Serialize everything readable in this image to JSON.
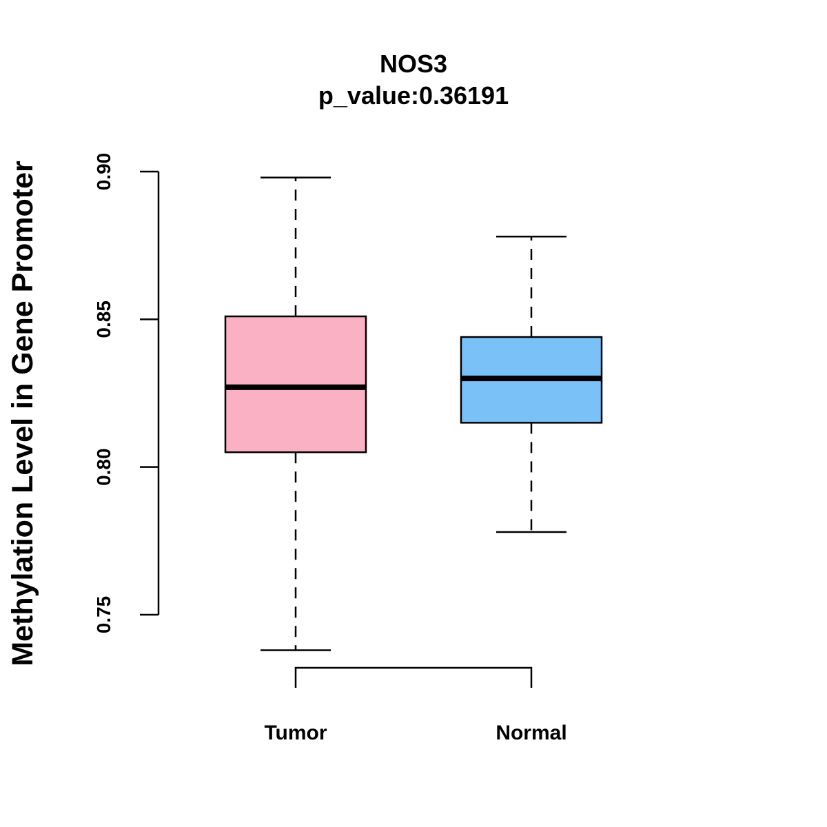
{
  "chart_data": {
    "type": "boxplot",
    "title": "NOS3",
    "subtitle": "p_value:0.36191",
    "xlabel": "",
    "ylabel": "Methylation Level in Gene Promoter",
    "ylim": [
      0.75,
      0.9
    ],
    "yticks": [
      0.75,
      0.8,
      0.85,
      0.9
    ],
    "ytick_labels": [
      "0.75",
      "0.80",
      "0.85",
      "0.90"
    ],
    "categories": [
      "Tumor",
      "Normal"
    ],
    "boxes": [
      {
        "name": "Tumor",
        "min": 0.738,
        "q1": 0.805,
        "median": 0.827,
        "q3": 0.851,
        "max": 0.898,
        "color": "#FBB1C4"
      },
      {
        "name": "Normal",
        "min": 0.778,
        "q1": 0.815,
        "median": 0.83,
        "q3": 0.844,
        "max": 0.878,
        "color": "#7AC1F8"
      }
    ],
    "grid": false,
    "legend": "none",
    "comparison_bracket": {
      "between": [
        "Tumor",
        "Normal"
      ]
    }
  }
}
